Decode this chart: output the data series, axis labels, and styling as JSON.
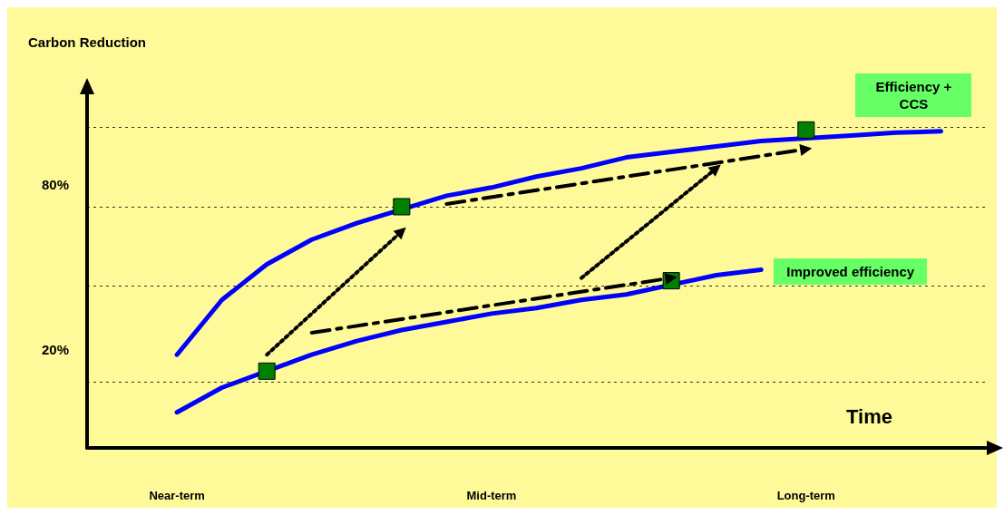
{
  "chart_data": {
    "type": "line",
    "ylabel": "Carbon Reduction",
    "xlabel": "Time",
    "categories": [
      null,
      null,
      "Near-term",
      null,
      null,
      null,
      null,
      null,
      null,
      "Mid-term",
      null,
      null,
      null,
      null,
      null,
      null,
      "Long-term",
      null,
      null,
      null,
      null
    ],
    "ylim": [
      -16,
      115
    ],
    "yticks": [
      {
        "value": 20,
        "label": "20%"
      },
      {
        "value": 80,
        "label": "80%"
      }
    ],
    "legend": false,
    "grid": false,
    "marker": "none",
    "line_style": "solid",
    "series": [
      {
        "name": "Efficiency + CCS",
        "color": "#0000ff",
        "values": [
          null,
          null,
          18,
          38,
          51,
          60,
          66,
          null,
          76,
          79,
          83,
          86,
          90,
          92,
          94,
          96,
          null,
          98,
          99,
          99.5,
          null
        ]
      },
      {
        "name": "Improved efficiency",
        "color": "#0000ff",
        "values": [
          null,
          null,
          -3,
          6,
          null,
          18,
          23,
          27,
          30,
          33,
          35,
          38,
          40,
          null,
          47,
          49,
          null,
          null,
          null,
          null,
          null
        ]
      },
      {
        "type": "scatter",
        "marker": "square",
        "color": "#008000",
        "values": [
          null,
          null,
          null,
          null,
          12,
          null,
          null,
          72,
          null,
          null,
          null,
          null,
          null,
          45,
          null,
          null,
          100,
          null,
          null,
          null,
          null
        ]
      },
      {
        "color": "#000000",
        "marker": "triangle",
        "line_style": "dotted",
        "values": [
          null,
          null,
          null,
          null,
          18,
          null,
          null,
          63,
          null,
          null,
          null,
          null,
          null,
          null,
          null,
          null,
          null,
          null,
          null,
          null,
          null
        ]
      },
      {
        "color": "#000000",
        "marker": "triangle",
        "line_style": "dotted",
        "values": [
          null,
          null,
          null,
          null,
          null,
          null,
          null,
          null,
          null,
          null,
          null,
          46,
          null,
          null,
          86,
          null,
          null,
          null,
          null,
          null,
          null
        ]
      },
      {
        "color": "#000000",
        "marker": "triangle",
        "line_style": "dashed",
        "values": [
          null,
          null,
          null,
          null,
          null,
          26,
          null,
          null,
          null,
          null,
          null,
          null,
          null,
          46,
          null,
          null,
          null,
          null,
          null,
          null,
          null
        ]
      },
      {
        "color": "#000000",
        "marker": "triangle",
        "line_style": "dashed",
        "values": [
          null,
          null,
          null,
          null,
          null,
          null,
          null,
          null,
          73,
          null,
          null,
          null,
          null,
          null,
          null,
          null,
          93,
          null,
          null,
          null,
          null
        ]
      }
    ],
    "ref_lines": [
      {
        "axis": "y",
        "value": 8,
        "color": "#000000",
        "line_style": "dotted"
      },
      {
        "axis": "y",
        "value": 43,
        "color": "#000000",
        "line_style": "dotted"
      },
      {
        "axis": "y",
        "value": 72,
        "color": "#000000",
        "line_style": "dotted"
      },
      {
        "axis": "y",
        "value": 101,
        "color": "#000000",
        "line_style": "dotted"
      }
    ]
  }
}
